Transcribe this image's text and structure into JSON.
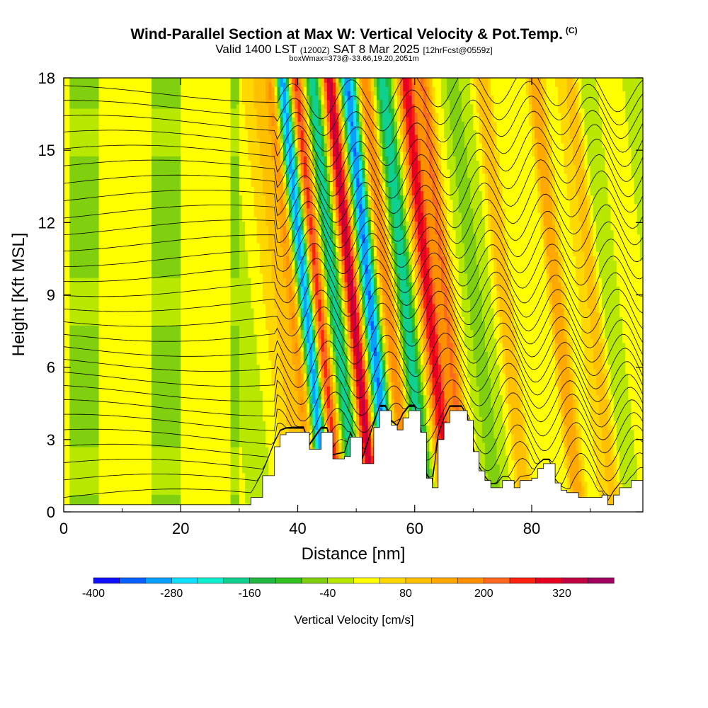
{
  "title": {
    "main": "Wind-Parallel Section at Max W: Vertical Velocity & Pot.Temp.",
    "copyright": "(C)",
    "valid_prefix": "Valid 1400 LST",
    "valid_utc": "(1200Z)",
    "valid_date": "SAT 8 Mar 2025",
    "forecast": "[12hrFcst@0559z]",
    "box_info": "boxWmax=373@-33.66,19.20,2051m"
  },
  "chart_data": {
    "type": "heatmap",
    "title": "Wind-Parallel Section at Max W: Vertical Velocity & Pot.Temp.",
    "xlabel": "Distance [nm]",
    "ylabel": "Height [Kft MSL]",
    "xlim": [
      0,
      99
    ],
    "ylim": [
      0,
      18
    ],
    "x_ticks": [
      "0",
      "20",
      "40",
      "60",
      "80"
    ],
    "x_tick_values": [
      0,
      20,
      40,
      60,
      80
    ],
    "y_ticks": [
      "0",
      "3",
      "6",
      "9",
      "12",
      "15",
      "18"
    ],
    "y_tick_values": [
      0,
      3,
      6,
      9,
      12,
      15,
      18
    ],
    "colorbar": {
      "label": "Vertical Velocity [cm/s]",
      "min": -400,
      "max": 400,
      "step": 40,
      "tick_labels": [
        "-400",
        "-280",
        "-160",
        "-40",
        "80",
        "200",
        "320"
      ],
      "tick_values": [
        -400,
        -280,
        -160,
        -40,
        80,
        200,
        320
      ],
      "colors": [
        "#1010ff",
        "#0a60ff",
        "#0aa0ff",
        "#10e0ff",
        "#10f0d0",
        "#10d090",
        "#20b840",
        "#30c020",
        "#80d010",
        "#b8e800",
        "#ffff00",
        "#ffd800",
        "#ffc000",
        "#ffa800",
        "#ff9000",
        "#ff6820",
        "#ff2010",
        "#e80020",
        "#c00040",
        "#a00060"
      ]
    },
    "vertical_velocity_cm_s": {
      "description": "Estimated band centers along the section",
      "bands": [
        {
          "distance_nm": 40,
          "w": 80
        },
        {
          "distance_nm": 43,
          "w": 200
        },
        {
          "distance_nm": 45,
          "w": -380
        },
        {
          "distance_nm": 47,
          "w": 300
        },
        {
          "distance_nm": 50,
          "w": -200
        },
        {
          "distance_nm": 53,
          "w": 340
        },
        {
          "distance_nm": 56,
          "w": -330
        },
        {
          "distance_nm": 59,
          "w": 200
        },
        {
          "distance_nm": 62,
          "w": -200
        },
        {
          "distance_nm": 66,
          "w": 300
        },
        {
          "distance_nm": 69,
          "w": 200
        },
        {
          "distance_nm": 74,
          "w": -80
        },
        {
          "distance_nm": 79,
          "w": 120
        },
        {
          "distance_nm": 88,
          "w": 160
        },
        {
          "distance_nm": 94,
          "w": 100
        }
      ]
    },
    "terrain_kft": {
      "x": [
        0,
        31,
        32,
        34,
        36,
        37,
        38,
        41,
        42,
        44,
        45,
        46,
        48,
        49,
        51,
        53,
        54,
        55,
        56,
        57,
        58,
        59,
        60,
        61,
        62,
        63,
        64,
        65,
        66,
        67,
        68,
        69,
        70,
        71,
        72,
        73,
        74,
        75,
        76,
        77,
        78,
        79,
        80,
        81,
        82,
        83,
        84,
        85,
        86,
        88,
        92,
        93,
        94,
        95,
        96,
        97,
        98,
        99
      ],
      "y": [
        0.3,
        0.3,
        0.6,
        1.5,
        2.7,
        3.2,
        3.3,
        3.3,
        2.6,
        3.3,
        3.3,
        2.2,
        2.3,
        3.1,
        2.0,
        3.5,
        4.2,
        4.2,
        3.6,
        3.4,
        3.9,
        4.2,
        4.2,
        3.3,
        1.4,
        1.0,
        3.0,
        3.7,
        4.2,
        4.2,
        4.2,
        3.8,
        2.5,
        1.7,
        1.3,
        1.0,
        1.0,
        1.3,
        1.3,
        1.0,
        1.3,
        1.3,
        1.4,
        1.8,
        2.0,
        2.0,
        1.2,
        0.9,
        0.8,
        0.6,
        0.7,
        0.3,
        0.7,
        1.0,
        1.0,
        1.3,
        1.3,
        1.3
      ]
    },
    "potential_temperature_contours": {
      "count": 28,
      "base_height_kft": 0.6,
      "spacing_kft": 0.62
    }
  }
}
